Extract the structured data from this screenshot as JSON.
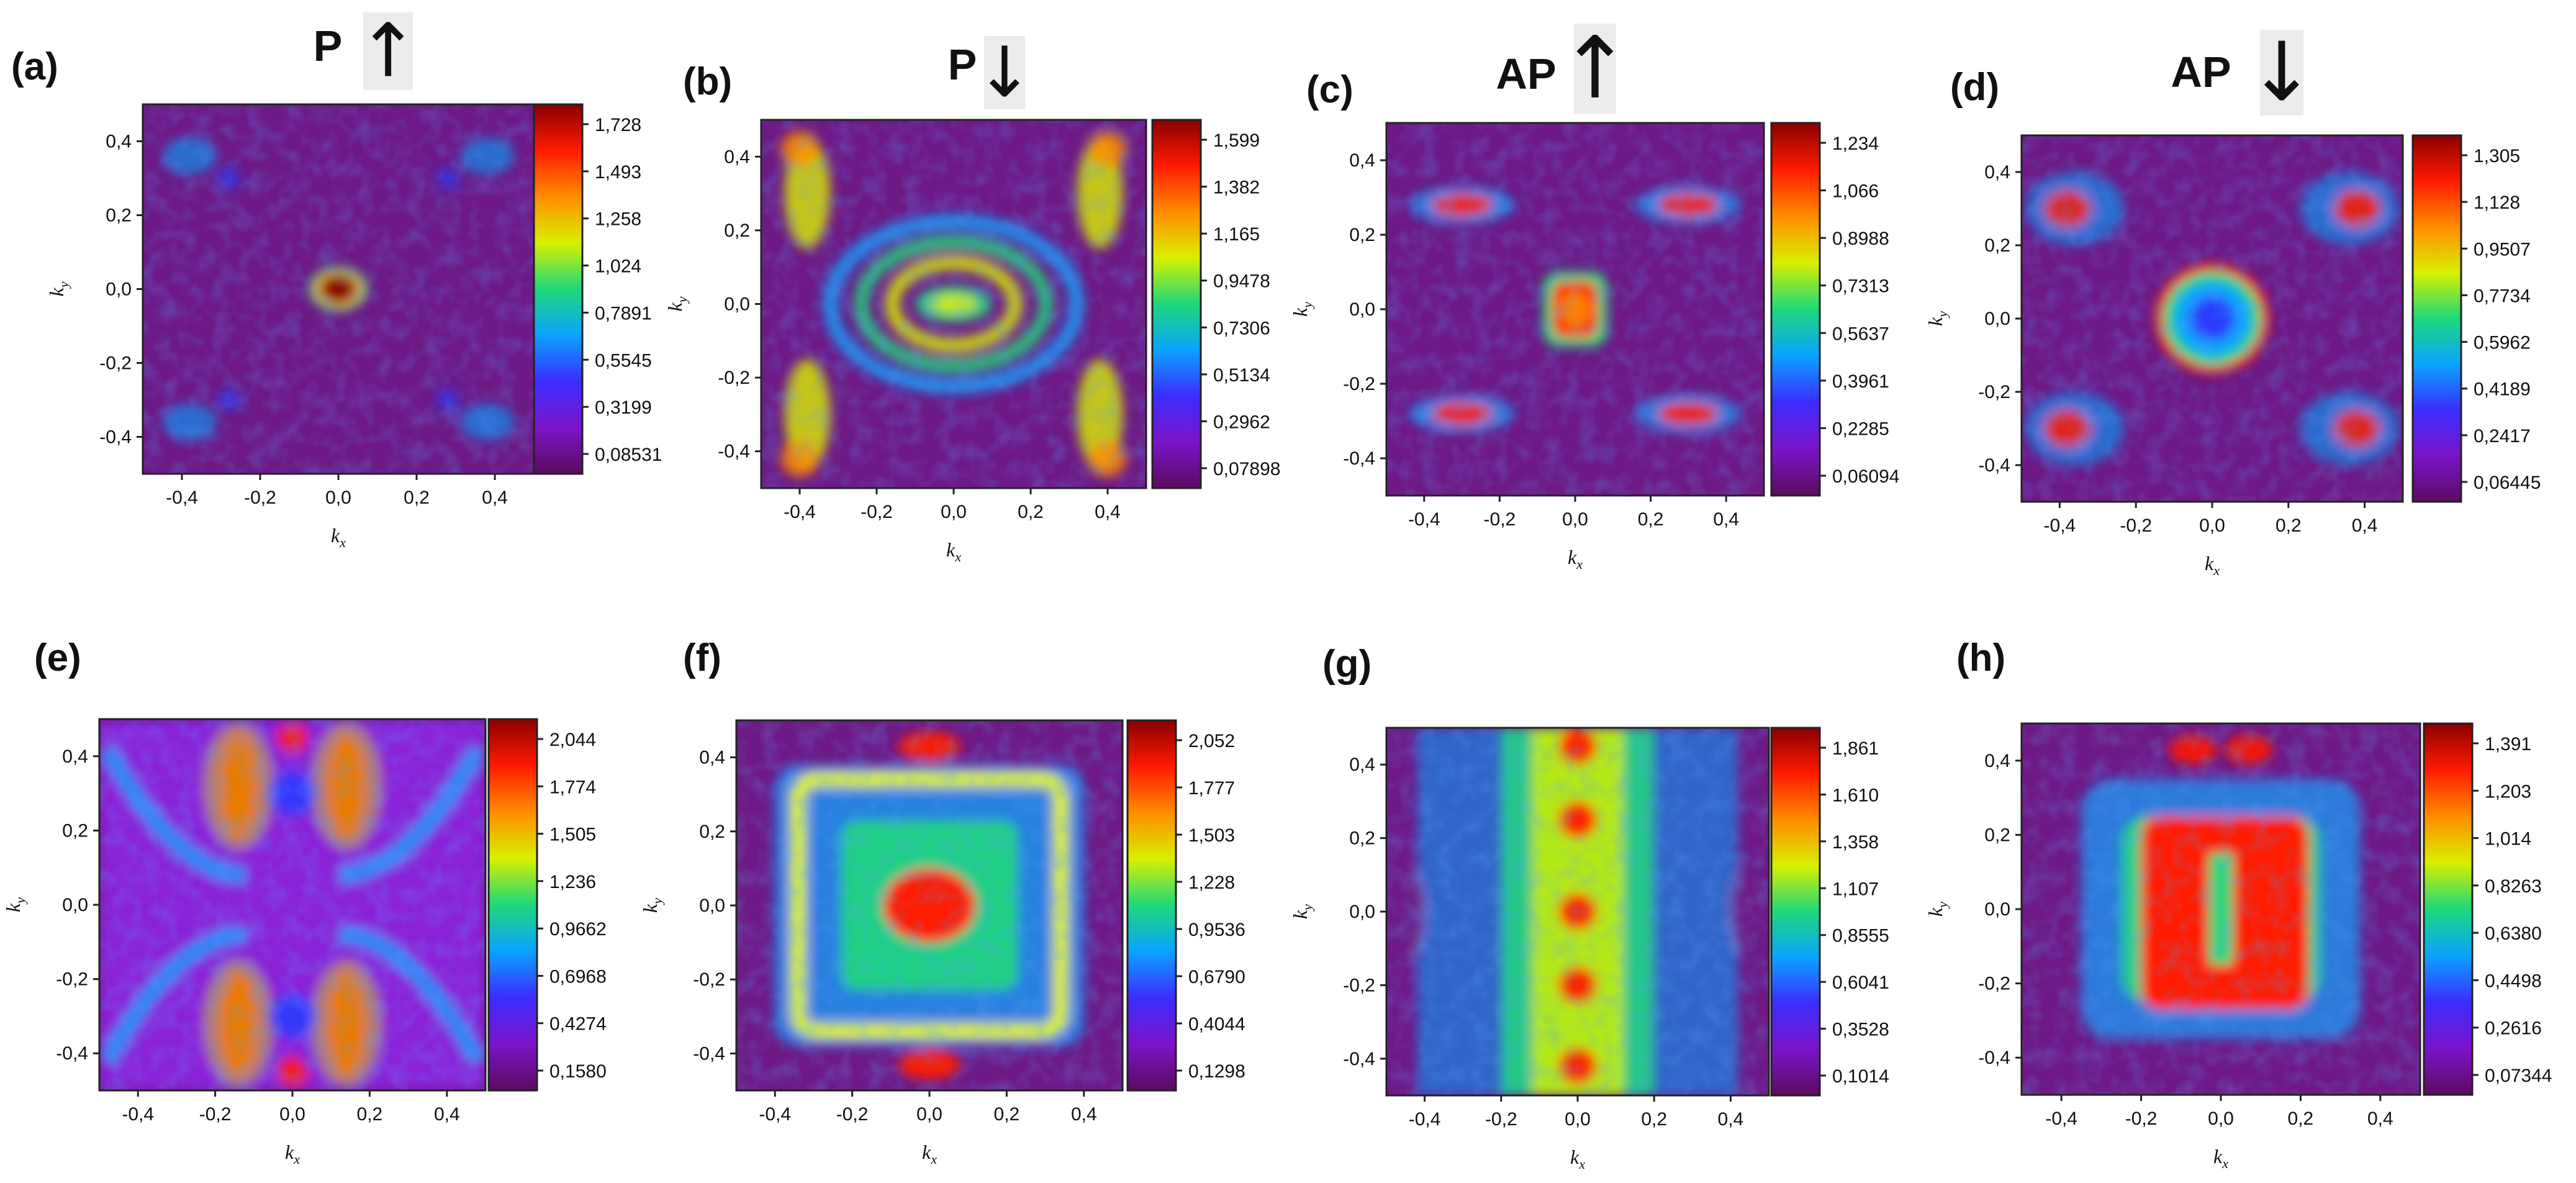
{
  "figure": {
    "x_ticks": [
      "-0,4",
      "-0,2",
      "0,0",
      "0,2",
      "0,4"
    ],
    "y_ticks": [
      "0,4",
      "0,2",
      "0,0",
      "-0,2",
      "-0,4"
    ],
    "x_label": "k",
    "x_sub": "x",
    "y_label": "k",
    "y_sub": "y",
    "arrow_up": "↑",
    "arrow_down": "↓",
    "colors": {
      "colormap": [
        "#5c0b5f",
        "#7a14c8",
        "#3c2cff",
        "#0aa3ff",
        "#1ed87a",
        "#d8f000",
        "#ff8c00",
        "#ff1a00",
        "#8a0000"
      ],
      "background": "#6e1a86",
      "arrow_box": "#ececec"
    }
  },
  "chart_data": [
    {
      "type": "heatmap",
      "panel": "(a)",
      "title": "P",
      "spin": "up",
      "xlim": [
        -0.5,
        0.5
      ],
      "ylim": [
        -0.5,
        0.5
      ],
      "colorbar_ticks": [
        "1,728",
        "1,493",
        "1,258",
        "1,024",
        "0,7891",
        "0,5545",
        "0,3199",
        "0,08531"
      ],
      "colorbar_range": [
        0.08531,
        1.728
      ],
      "pattern": "center-dot"
    },
    {
      "type": "heatmap",
      "panel": "(b)",
      "title": "P",
      "spin": "down",
      "xlim": [
        -0.5,
        0.5
      ],
      "ylim": [
        -0.5,
        0.5
      ],
      "colorbar_ticks": [
        "1,599",
        "1,382",
        "1,165",
        "0,9478",
        "0,7306",
        "0,5134",
        "0,2962",
        "0,07898"
      ],
      "colorbar_range": [
        0.07898,
        1.599
      ],
      "pattern": "rings"
    },
    {
      "type": "heatmap",
      "panel": "(c)",
      "title": "AP",
      "spin": "up",
      "xlim": [
        -0.5,
        0.5
      ],
      "ylim": [
        -0.5,
        0.5
      ],
      "colorbar_ticks": [
        "1,234",
        "1,066",
        "0,8988",
        "0,7313",
        "0,5637",
        "0,3961",
        "0,2285",
        "0,06094"
      ],
      "colorbar_range": [
        0.06094,
        1.234
      ],
      "pattern": "center-square"
    },
    {
      "type": "heatmap",
      "panel": "(d)",
      "title": "AP",
      "spin": "down",
      "xlim": [
        -0.5,
        0.5
      ],
      "ylim": [
        -0.5,
        0.5
      ],
      "colorbar_ticks": [
        "1,305",
        "1,128",
        "0,9507",
        "0,7734",
        "0,5962",
        "0,4189",
        "0,2417",
        "0,06445"
      ],
      "colorbar_range": [
        0.06445,
        1.305
      ],
      "pattern": "center-ring"
    },
    {
      "type": "heatmap",
      "panel": "(e)",
      "title": "",
      "spin": "",
      "xlim": [
        -0.5,
        0.5
      ],
      "ylim": [
        -0.5,
        0.5
      ],
      "colorbar_ticks": [
        "2,044",
        "1,774",
        "1,505",
        "1,236",
        "0,9662",
        "0,6968",
        "0,4274",
        "0,1580"
      ],
      "colorbar_range": [
        0.158,
        2.044
      ],
      "pattern": "hourglass"
    },
    {
      "type": "heatmap",
      "panel": "(f)",
      "title": "",
      "spin": "",
      "xlim": [
        -0.5,
        0.5
      ],
      "ylim": [
        -0.5,
        0.5
      ],
      "colorbar_ticks": [
        "2,052",
        "1,777",
        "1,503",
        "1,228",
        "0,9536",
        "0,6790",
        "0,4044",
        "0,1298"
      ],
      "colorbar_range": [
        0.1298,
        2.052
      ],
      "pattern": "frame"
    },
    {
      "type": "heatmap",
      "panel": "(g)",
      "title": "",
      "spin": "",
      "xlim": [
        -0.5,
        0.5
      ],
      "ylim": [
        -0.5,
        0.5
      ],
      "colorbar_ticks": [
        "1,861",
        "1,610",
        "1,358",
        "1,107",
        "0,8555",
        "0,6041",
        "0,3528",
        "0,1014"
      ],
      "colorbar_range": [
        0.1014,
        1.861
      ],
      "pattern": "column"
    },
    {
      "type": "heatmap",
      "panel": "(h)",
      "title": "",
      "spin": "",
      "xlim": [
        -0.5,
        0.5
      ],
      "ylim": [
        -0.5,
        0.5
      ],
      "colorbar_ticks": [
        "1,391",
        "1,203",
        "1,014",
        "0,8263",
        "0,6380",
        "0,4498",
        "0,2616",
        "0,07344"
      ],
      "colorbar_range": [
        0.07344,
        1.391
      ],
      "pattern": "block"
    }
  ]
}
